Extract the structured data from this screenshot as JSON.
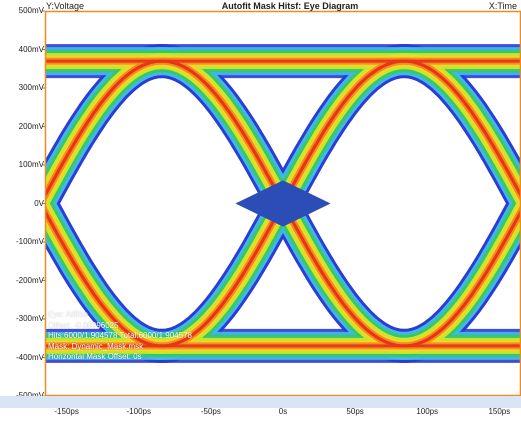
{
  "header": {
    "y_axis_name": "Y:Voltage",
    "title": "Autofit Mask Hitsf: Eye Diagram",
    "x_axis_name": "X:Time"
  },
  "axes": {
    "y_ticks": [
      "500mV",
      "400mV",
      "300mV",
      "200mV",
      "100mV",
      "0V",
      "-100mV",
      "-200mV",
      "-300mV",
      "-400mV",
      "-500mV"
    ],
    "x_ticks": [
      "-150ps",
      "-100ps",
      "-50ps",
      "0s",
      "50ps",
      "100ps",
      "150ps"
    ]
  },
  "info": {
    "line1": "Eye: AllBits",
    "line2": "Offset: -0.00096025",
    "line3": "Hits:6000/1.904578  Total:6000/1.904578",
    "line4": "Mask: Dynamic_Mask.msk",
    "line5": "Horizontal Mask Offset: 0s"
  },
  "chart_data": {
    "type": "heatmap",
    "title": "Autofit Mask Hitsf: Eye Diagram",
    "xlabel": "X:Time",
    "ylabel": "Y:Voltage",
    "xlim_ps": [
      -165,
      165
    ],
    "ylim_mV": [
      -500,
      500
    ],
    "x_ticks_ps": [
      -150,
      -100,
      -50,
      0,
      50,
      100,
      150
    ],
    "y_ticks_mV": [
      500,
      400,
      300,
      200,
      100,
      0,
      -100,
      -200,
      -300,
      -400,
      -500
    ],
    "levels_mV": {
      "high": 370,
      "low": -370
    },
    "crossings_ps": [
      -84,
      84
    ],
    "mask": {
      "type": "diamond",
      "center_ps": 0,
      "center_mV": 0,
      "half_width_ps": 33,
      "half_height_mV": 60,
      "color": "#2b4db5"
    },
    "grid": false,
    "colors": {
      "frame": "#f08c1e",
      "outer": "#1a2a9a",
      "density": [
        "#2b3bd4",
        "#3fb8e8",
        "#38c768",
        "#c8e82a",
        "#f2d629",
        "#f28c1e",
        "#e8351a"
      ]
    }
  }
}
